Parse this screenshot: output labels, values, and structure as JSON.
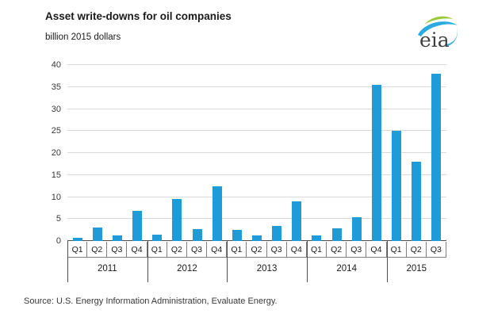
{
  "header": {
    "title": "Asset write-downs for oil companies",
    "subtitle": "billion 2015 dollars",
    "logo_text": "eia"
  },
  "source": {
    "text": "Source:  U.S. Energy Information Administration, Evaluate Energy."
  },
  "colors": {
    "bar": "#1f9cd7",
    "gridline": "#d9d9d9",
    "axis": "#4d4d4d",
    "cell_border": "#7f7f7f",
    "tick_text": "#383838",
    "logo_green": "#9aca3c",
    "logo_blue": "#2baae2",
    "logo_text": "#404040"
  },
  "chart_data": {
    "type": "bar",
    "title": "Asset write-downs for oil companies",
    "ylabel": "billion 2015 dollars",
    "ylim": [
      0,
      40
    ],
    "yticks": [
      0,
      5,
      10,
      15,
      20,
      25,
      30,
      35,
      40
    ],
    "grid": true,
    "legend": "none",
    "categories": [
      "Q1",
      "Q2",
      "Q3",
      "Q4",
      "Q1",
      "Q2",
      "Q3",
      "Q4",
      "Q1",
      "Q2",
      "Q3",
      "Q4",
      "Q1",
      "Q2",
      "Q3",
      "Q4",
      "Q1",
      "Q2",
      "Q3"
    ],
    "groups": [
      {
        "label": "2011",
        "count": 4
      },
      {
        "label": "2012",
        "count": 4
      },
      {
        "label": "2013",
        "count": 4
      },
      {
        "label": "2014",
        "count": 4
      },
      {
        "label": "2015",
        "count": 3
      }
    ],
    "values": [
      0.8,
      3.0,
      1.2,
      6.8,
      1.4,
      9.5,
      2.7,
      12.5,
      2.5,
      1.2,
      3.5,
      9.0,
      1.3,
      2.9,
      5.4,
      35.5,
      25.0,
      18.0,
      38.0
    ]
  }
}
